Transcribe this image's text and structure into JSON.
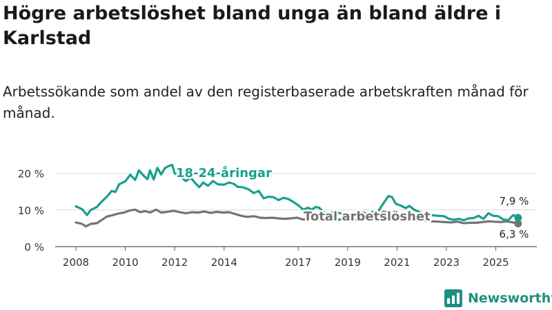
{
  "title": "Högre arbetslöshet bland unga än bland äldre i Karlstad",
  "subtitle": "Arbetssökande som andel av den registerbaserade arbetskraften månad för månad.",
  "brand": {
    "name": "Newsworthy",
    "icon": "newsworthy-logo-icon"
  },
  "colors": {
    "youth": "#17a08c",
    "total": "#737373",
    "grid": "#dcdcdc",
    "axis": "#555555"
  },
  "chart_data": {
    "type": "line",
    "title": "Högre arbetslöshet bland unga än bland äldre i Karlstad",
    "xlabel": "",
    "ylabel": "",
    "xlim": [
      2008,
      2026.2
    ],
    "ylim": [
      0,
      25
    ],
    "y_ticks": [
      {
        "value": 0,
        "label": "0 %"
      },
      {
        "value": 10,
        "label": "10 %"
      },
      {
        "value": 20,
        "label": "20 %"
      }
    ],
    "x_ticks": [
      {
        "value": 2008,
        "label": "2008"
      },
      {
        "value": 2010,
        "label": "2010"
      },
      {
        "value": 2012,
        "label": "2012"
      },
      {
        "value": 2014,
        "label": "2014"
      },
      {
        "value": 2017,
        "label": "2017"
      },
      {
        "value": 2019,
        "label": "2019"
      },
      {
        "value": 2021,
        "label": "2021"
      },
      {
        "value": 2023,
        "label": "2023"
      },
      {
        "value": 2025,
        "label": "2025"
      }
    ],
    "series": [
      {
        "name": "18-24-åringar",
        "color": "#17a08c",
        "points": [
          [
            2008.0,
            11.0
          ],
          [
            2008.25,
            10.2
          ],
          [
            2008.45,
            8.6
          ],
          [
            2008.6,
            10.0
          ],
          [
            2008.85,
            10.8
          ],
          [
            2009.0,
            12.0
          ],
          [
            2009.25,
            13.6
          ],
          [
            2009.45,
            15.2
          ],
          [
            2009.6,
            14.9
          ],
          [
            2009.75,
            17.0
          ],
          [
            2010.0,
            17.8
          ],
          [
            2010.2,
            19.6
          ],
          [
            2010.4,
            18.2
          ],
          [
            2010.55,
            20.8
          ],
          [
            2010.75,
            19.3
          ],
          [
            2010.9,
            18.4
          ],
          [
            2011.0,
            20.8
          ],
          [
            2011.15,
            18.3
          ],
          [
            2011.3,
            21.5
          ],
          [
            2011.45,
            19.7
          ],
          [
            2011.6,
            21.4
          ],
          [
            2011.75,
            22.0
          ],
          [
            2011.9,
            22.3
          ],
          [
            2012.0,
            20.0
          ],
          [
            2012.2,
            19.2
          ],
          [
            2012.45,
            17.9
          ],
          [
            2012.65,
            18.8
          ],
          [
            2012.85,
            17.2
          ],
          [
            2013.0,
            16.2
          ],
          [
            2013.15,
            17.5
          ],
          [
            2013.35,
            16.6
          ],
          [
            2013.55,
            17.9
          ],
          [
            2013.75,
            17.0
          ],
          [
            2014.0,
            16.9
          ],
          [
            2014.2,
            17.5
          ],
          [
            2014.4,
            17.1
          ],
          [
            2014.55,
            16.3
          ],
          [
            2014.75,
            16.2
          ],
          [
            2015.0,
            15.6
          ],
          [
            2015.2,
            14.6
          ],
          [
            2015.4,
            15.2
          ],
          [
            2015.6,
            13.2
          ],
          [
            2015.8,
            13.6
          ],
          [
            2016.0,
            13.5
          ],
          [
            2016.2,
            12.7
          ],
          [
            2016.4,
            13.3
          ],
          [
            2016.6,
            13.0
          ],
          [
            2016.8,
            12.2
          ],
          [
            2017.0,
            11.3
          ],
          [
            2017.2,
            10.1
          ],
          [
            2017.4,
            10.6
          ],
          [
            2017.55,
            10.1
          ],
          [
            2017.7,
            10.8
          ],
          [
            2017.85,
            10.6
          ],
          [
            2018.0,
            9.5
          ],
          [
            2018.2,
            9.0
          ],
          [
            2018.45,
            9.4
          ],
          [
            2018.7,
            9.1
          ],
          [
            2018.95,
            8.6
          ],
          [
            2019.2,
            9.0
          ],
          [
            2019.4,
            8.7
          ],
          [
            2019.65,
            9.3
          ],
          [
            2019.85,
            8.7
          ],
          [
            2020.0,
            9.5
          ],
          [
            2020.2,
            9.2
          ],
          [
            2020.35,
            10.8
          ],
          [
            2020.5,
            12.3
          ],
          [
            2020.65,
            13.8
          ],
          [
            2020.8,
            13.5
          ],
          [
            2020.95,
            11.7
          ],
          [
            2021.15,
            11.2
          ],
          [
            2021.35,
            10.5
          ],
          [
            2021.5,
            11.1
          ],
          [
            2021.7,
            10.0
          ],
          [
            2021.9,
            9.5
          ],
          [
            2022.1,
            8.9
          ],
          [
            2022.3,
            8.8
          ],
          [
            2022.5,
            8.5
          ],
          [
            2022.7,
            8.4
          ],
          [
            2022.9,
            8.3
          ],
          [
            2023.1,
            7.6
          ],
          [
            2023.3,
            7.3
          ],
          [
            2023.5,
            7.6
          ],
          [
            2023.7,
            7.2
          ],
          [
            2023.9,
            7.7
          ],
          [
            2024.1,
            7.8
          ],
          [
            2024.3,
            8.4
          ],
          [
            2024.5,
            7.6
          ],
          [
            2024.7,
            9.1
          ],
          [
            2024.9,
            8.4
          ],
          [
            2025.1,
            8.3
          ],
          [
            2025.3,
            7.4
          ],
          [
            2025.5,
            7.2
          ],
          [
            2025.7,
            8.6
          ],
          [
            2025.9,
            7.9
          ]
        ]
      },
      {
        "name": "Total arbetslöshet",
        "color": "#737373",
        "points": [
          [
            2008.0,
            6.6
          ],
          [
            2008.25,
            6.2
          ],
          [
            2008.4,
            5.5
          ],
          [
            2008.6,
            6.2
          ],
          [
            2008.85,
            6.4
          ],
          [
            2009.05,
            7.3
          ],
          [
            2009.25,
            8.2
          ],
          [
            2009.5,
            8.6
          ],
          [
            2009.7,
            9.0
          ],
          [
            2009.95,
            9.3
          ],
          [
            2010.2,
            9.9
          ],
          [
            2010.4,
            10.1
          ],
          [
            2010.6,
            9.4
          ],
          [
            2010.8,
            9.7
          ],
          [
            2011.0,
            9.3
          ],
          [
            2011.25,
            10.1
          ],
          [
            2011.45,
            9.3
          ],
          [
            2011.7,
            9.5
          ],
          [
            2011.95,
            9.8
          ],
          [
            2012.2,
            9.4
          ],
          [
            2012.45,
            9.1
          ],
          [
            2012.7,
            9.4
          ],
          [
            2012.95,
            9.3
          ],
          [
            2013.2,
            9.6
          ],
          [
            2013.45,
            9.2
          ],
          [
            2013.7,
            9.5
          ],
          [
            2013.95,
            9.3
          ],
          [
            2014.2,
            9.4
          ],
          [
            2014.45,
            8.9
          ],
          [
            2014.7,
            8.4
          ],
          [
            2014.95,
            8.1
          ],
          [
            2015.2,
            8.3
          ],
          [
            2015.45,
            7.9
          ],
          [
            2015.7,
            7.8
          ],
          [
            2015.95,
            7.9
          ],
          [
            2016.2,
            7.7
          ],
          [
            2016.45,
            7.6
          ],
          [
            2016.7,
            7.7
          ],
          [
            2016.95,
            7.9
          ],
          [
            2017.2,
            7.4
          ],
          [
            2017.45,
            7.5
          ],
          [
            2017.7,
            7.3
          ],
          [
            2017.95,
            7.2
          ],
          [
            2018.2,
            7.1
          ],
          [
            2018.45,
            7.2
          ],
          [
            2018.7,
            7.4
          ],
          [
            2018.95,
            7.1
          ],
          [
            2019.2,
            7.2
          ],
          [
            2019.45,
            7.4
          ],
          [
            2019.7,
            7.8
          ],
          [
            2019.95,
            8.0
          ],
          [
            2020.2,
            8.7
          ],
          [
            2020.45,
            9.5
          ],
          [
            2020.7,
            9.3
          ],
          [
            2020.95,
            8.9
          ],
          [
            2021.2,
            8.5
          ],
          [
            2021.45,
            8.2
          ],
          [
            2021.7,
            7.7
          ],
          [
            2021.95,
            7.3
          ],
          [
            2022.2,
            7.0
          ],
          [
            2022.45,
            6.9
          ],
          [
            2022.7,
            6.8
          ],
          [
            2022.95,
            6.7
          ],
          [
            2023.2,
            6.6
          ],
          [
            2023.45,
            6.8
          ],
          [
            2023.7,
            6.4
          ],
          [
            2023.95,
            6.5
          ],
          [
            2024.2,
            6.5
          ],
          [
            2024.45,
            6.7
          ],
          [
            2024.7,
            6.9
          ],
          [
            2024.95,
            6.8
          ],
          [
            2025.2,
            6.7
          ],
          [
            2025.45,
            6.9
          ],
          [
            2025.7,
            6.6
          ],
          [
            2025.9,
            6.3
          ]
        ]
      }
    ],
    "series_labels": [
      {
        "text": "18-24-åringar",
        "series": 0
      },
      {
        "text": "Total arbetslöshet",
        "series": 1
      }
    ],
    "end_labels": [
      {
        "text": "7,9 %",
        "series": 0,
        "value": 7.9
      },
      {
        "text": "6,3 %",
        "series": 1,
        "value": 6.3
      }
    ],
    "grid": true,
    "legend": "inline"
  }
}
